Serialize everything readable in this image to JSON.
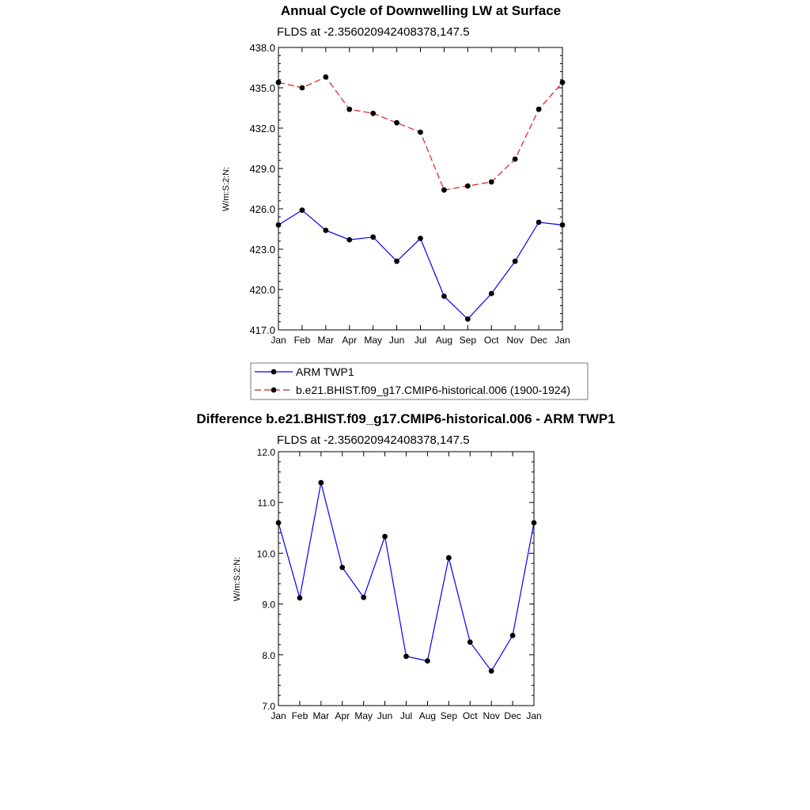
{
  "chart_data": [
    {
      "type": "line",
      "title": "Annual Cycle of Downwelling LW at Surface",
      "subtitle": "FLDS at -2.356020942408378,147.5",
      "ylabel": "W/m:S:2:N:",
      "categories": [
        "Jan",
        "Feb",
        "Mar",
        "Apr",
        "May",
        "Jun",
        "Jul",
        "Aug",
        "Sep",
        "Oct",
        "Nov",
        "Dec",
        "Jan"
      ],
      "ylim": [
        417.0,
        438.0
      ],
      "yticks": [
        "417.0",
        "420.0",
        "423.0",
        "426.0",
        "429.0",
        "432.0",
        "435.0",
        "438.0"
      ],
      "series": [
        {
          "name": "ARM TWP1",
          "color": "#0000ff",
          "dash": "solid",
          "values": [
            424.8,
            425.9,
            424.4,
            423.7,
            423.9,
            422.1,
            423.8,
            419.5,
            417.8,
            419.7,
            422.1,
            425.0,
            424.8
          ]
        },
        {
          "name": "b.e21.BHIST.f09_g17.CMIP6-historical.006 (1900-1924)",
          "color": "#e41a1c",
          "dash": "dashed",
          "values": [
            435.4,
            435.0,
            435.8,
            433.4,
            433.1,
            432.4,
            431.7,
            427.4,
            427.7,
            428.0,
            429.7,
            433.4,
            435.4
          ]
        }
      ]
    },
    {
      "type": "line",
      "title": "Difference b.e21.BHIST.f09_g17.CMIP6-historical.006 - ARM TWP1",
      "subtitle": "FLDS at -2.356020942408378,147.5",
      "ylabel": "W/m:S:2:N:",
      "categories": [
        "Jan",
        "Feb",
        "Mar",
        "Apr",
        "May",
        "Jun",
        "Jul",
        "Aug",
        "Sep",
        "Oct",
        "Nov",
        "Dec",
        "Jan"
      ],
      "ylim": [
        7.0,
        12.0
      ],
      "yticks": [
        "7.0",
        "8.0",
        "9.0",
        "10.0",
        "11.0",
        "12.0"
      ],
      "series": [
        {
          "name": "",
          "color": "#0000ff",
          "dash": "solid",
          "values": [
            10.6,
            9.12,
            11.39,
            9.72,
            9.13,
            10.33,
            7.97,
            7.88,
            9.91,
            8.25,
            7.68,
            8.38,
            10.6
          ]
        }
      ]
    }
  ]
}
